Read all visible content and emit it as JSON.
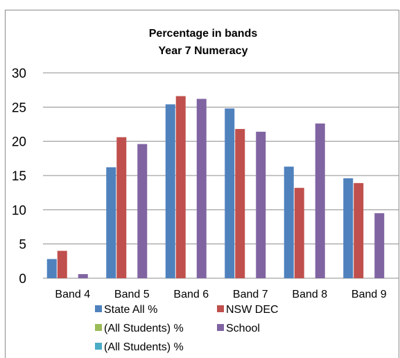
{
  "chart_data": {
    "type": "bar",
    "title": "Percentage in bands",
    "subtitle": "Year 7 Numeracy",
    "xlabel": "",
    "ylabel": "",
    "ylim": [
      0,
      30
    ],
    "yticks": [
      0,
      5,
      10,
      15,
      20,
      25,
      30
    ],
    "grid": true,
    "legend_position": "bottom",
    "categories": [
      "Band 4",
      "Band 5",
      "Band 6",
      "Band 7",
      "Band 8",
      "Band 9"
    ],
    "series": [
      {
        "name": "State All %",
        "color": "#4f81bd",
        "values": [
          2.8,
          16.2,
          25.4,
          24.8,
          16.3,
          14.6
        ]
      },
      {
        "name": "NSW DEC",
        "color": "#c0504d",
        "values": [
          4.0,
          20.6,
          26.6,
          21.8,
          13.2,
          13.9
        ]
      },
      {
        "name": "(All Students) %",
        "color": "#9bbb59",
        "values": [
          0,
          0,
          0,
          0,
          0,
          0
        ]
      },
      {
        "name": "School",
        "color": "#8064a2",
        "values": [
          0.6,
          19.6,
          26.2,
          21.4,
          22.6,
          9.5
        ]
      },
      {
        "name": "(All Students) %",
        "color": "#4bacc6",
        "values": [
          0,
          0,
          0,
          0,
          0,
          0
        ]
      }
    ]
  }
}
